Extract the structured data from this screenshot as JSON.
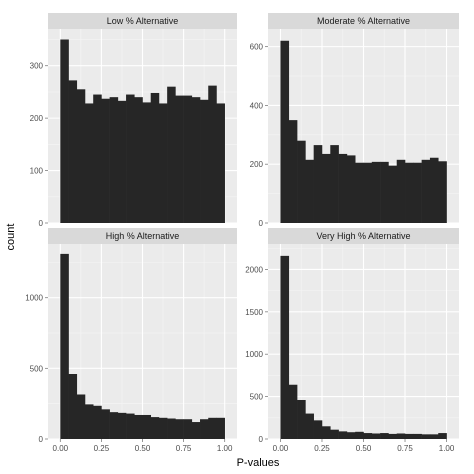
{
  "chart_data": {
    "type": "bar",
    "xlabel": "P-values",
    "ylabel": "count",
    "grid": true,
    "x_ticks": [
      "0.00",
      "0.25",
      "0.50",
      "0.75",
      "1.00"
    ],
    "x_tick_values": [
      0,
      0.25,
      0.5,
      0.75,
      1
    ],
    "xlim": [
      -0.075,
      1.075
    ],
    "bin_width": 0.05,
    "bin_centers": [
      0.025,
      0.075,
      0.125,
      0.175,
      0.225,
      0.275,
      0.325,
      0.375,
      0.425,
      0.475,
      0.525,
      0.575,
      0.625,
      0.675,
      0.725,
      0.775,
      0.825,
      0.875,
      0.925,
      0.975
    ],
    "colors": {
      "bar": "#262626",
      "panel": "#ebebeb",
      "strip": "#d9d9d9",
      "grid": "#ffffff"
    },
    "panels": [
      {
        "title": "Low % Alternative",
        "y_ticks": [
          0,
          100,
          200,
          300
        ],
        "ylim": [
          0,
          370
        ],
        "values": [
          350,
          272,
          255,
          228,
          245,
          237,
          240,
          233,
          245,
          240,
          230,
          248,
          228,
          260,
          243,
          243,
          240,
          235,
          262,
          228
        ]
      },
      {
        "title": "Moderate % Alternative",
        "y_ticks": [
          0,
          200,
          400,
          600
        ],
        "ylim": [
          0,
          660
        ],
        "values": [
          620,
          350,
          280,
          215,
          265,
          235,
          265,
          235,
          230,
          205,
          205,
          208,
          208,
          195,
          215,
          205,
          205,
          215,
          222,
          210
        ]
      },
      {
        "title": "High % Alternative",
        "y_ticks": [
          0,
          500,
          1000
        ],
        "ylim": [
          0,
          1380
        ],
        "values": [
          1310,
          460,
          315,
          245,
          235,
          210,
          190,
          185,
          180,
          170,
          170,
          155,
          150,
          145,
          140,
          140,
          120,
          140,
          150,
          150
        ]
      },
      {
        "title": "Very High % Alternative",
        "y_ticks": [
          0,
          500,
          1000,
          1500,
          2000
        ],
        "ylim": [
          0,
          2300
        ],
        "values": [
          2160,
          640,
          460,
          300,
          220,
          150,
          110,
          90,
          80,
          85,
          70,
          65,
          70,
          60,
          65,
          60,
          60,
          55,
          55,
          70
        ]
      }
    ]
  }
}
